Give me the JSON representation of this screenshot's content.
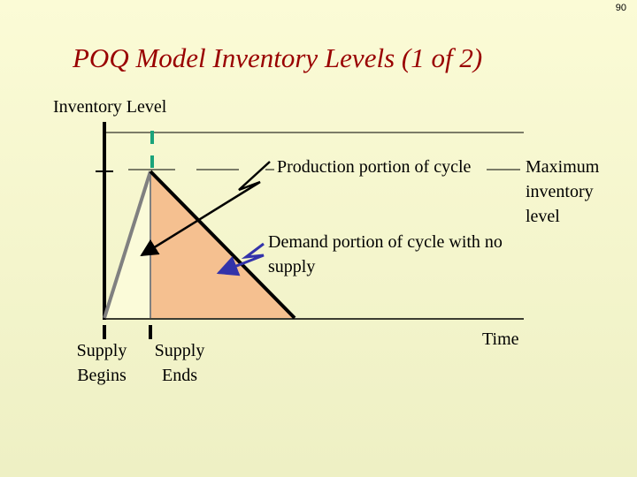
{
  "page_number": "90",
  "title": "POQ Model Inventory Levels (1 of 2)",
  "y_axis_label": "Inventory Level",
  "x_axis_label": "Time",
  "annotations": {
    "production": "Production portion of cycle",
    "maximum": "Maximum inventory level",
    "demand": "Demand portion of cycle with no supply"
  },
  "markers": {
    "supply_begins": "Supply Begins",
    "supply_ends": "Supply Ends"
  },
  "colors": {
    "title": "#990000",
    "production_fill": "#fbfbd9",
    "demand_fill": "#f5c090",
    "dashed_marker": "#1aa37a",
    "demand_arrow": "#3333aa"
  }
}
